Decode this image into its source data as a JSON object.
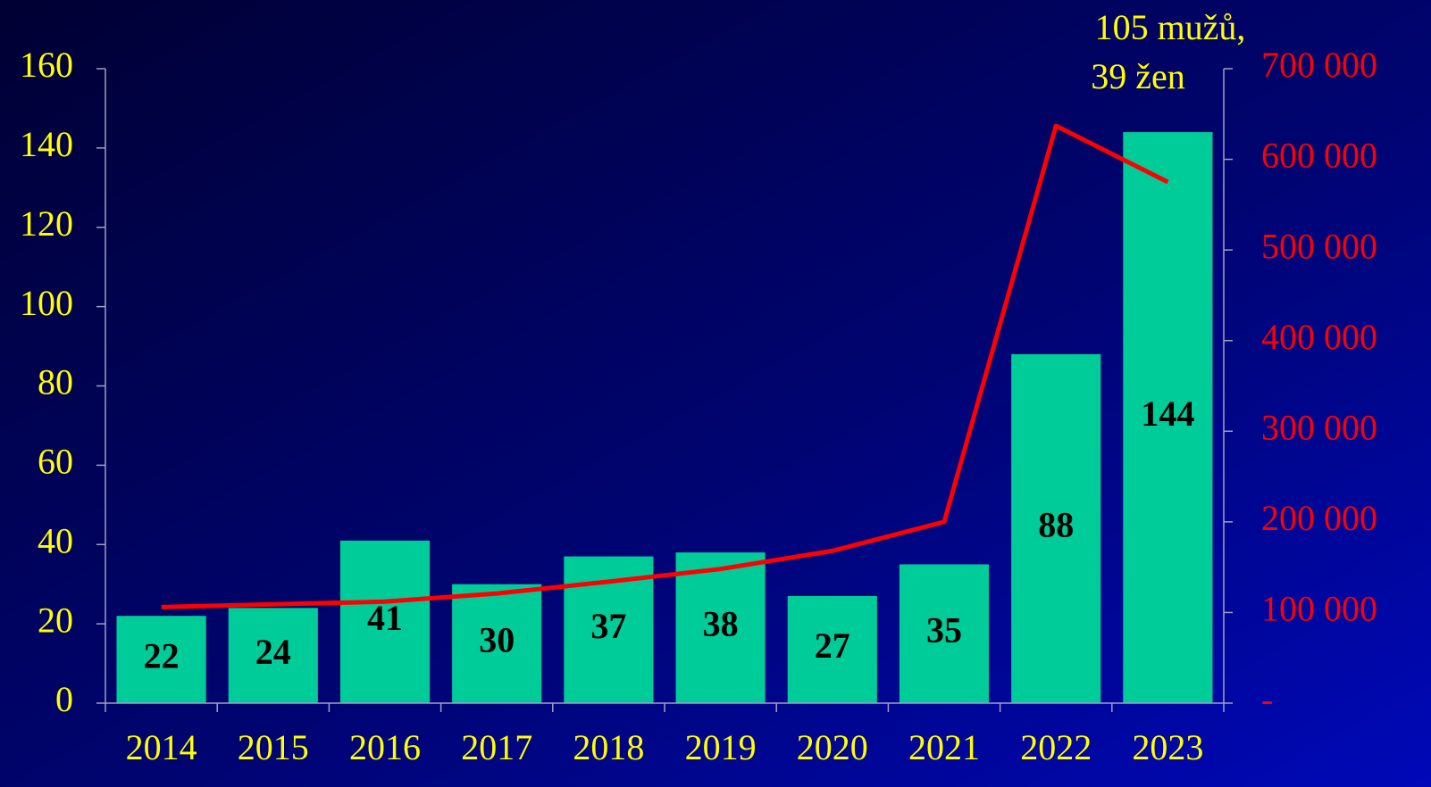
{
  "chart_data": {
    "type": "bar",
    "categories": [
      "2014",
      "2015",
      "2016",
      "2017",
      "2018",
      "2019",
      "2020",
      "2021",
      "2022",
      "2023"
    ],
    "series": [
      {
        "type": "bar",
        "color": "#00cc99",
        "values": [
          22,
          24,
          41,
          30,
          37,
          38,
          27,
          35,
          88,
          144
        ]
      },
      {
        "type": "line",
        "axis": "y2",
        "color": "#ff0000",
        "values": [
          106000,
          109000,
          112000,
          121000,
          134000,
          148000,
          168000,
          200000,
          637000,
          575000
        ]
      }
    ],
    "ylim": [
      0,
      160
    ],
    "yticks": [
      0,
      20,
      40,
      60,
      80,
      100,
      120,
      140,
      160
    ],
    "y2lim": [
      0,
      700000
    ],
    "y2ticks": [
      {
        "value": 0,
        "label": "-"
      },
      {
        "value": 100000,
        "label": "100 000"
      },
      {
        "value": 200000,
        "label": "200 000"
      },
      {
        "value": 300000,
        "label": "300 000"
      },
      {
        "value": 400000,
        "label": "400 000"
      },
      {
        "value": 500000,
        "label": "500 000"
      },
      {
        "value": 600000,
        "label": "600 000"
      },
      {
        "value": 700000,
        "label": "700 000"
      }
    ],
    "annotations": [
      "105 mužů,",
      "39 žen"
    ]
  }
}
